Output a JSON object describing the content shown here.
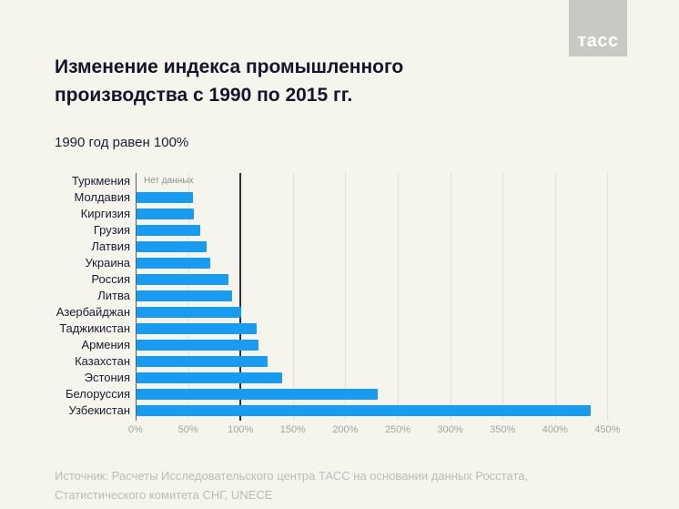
{
  "logo": {
    "text": "тасс"
  },
  "header": {
    "title_lines": [
      "Изменение индекса промышленного",
      "производства с 1990 по 2015 гг."
    ],
    "subtitle": "1990 год равен 100%"
  },
  "chart_data": {
    "type": "bar",
    "orientation": "horizontal",
    "title": "Изменение индекса промышленного производства с 1990 по 2015 гг.",
    "subtitle": "1990 год равен 100%",
    "unit": "%",
    "categories": [
      "Туркмения",
      "Молдавия",
      "Киргизия",
      "Грузия",
      "Латвия",
      "Украина",
      "Россия",
      "Литва",
      "Азербайджан",
      "Таджикистан",
      "Армения",
      "Казахстан",
      "Эстония",
      "Белоруссия",
      "Узбекистан"
    ],
    "values": [
      null,
      54,
      55,
      61,
      67,
      70,
      88,
      91,
      100,
      115,
      116,
      125,
      139,
      230,
      433
    ],
    "no_data_label": "Нет данных",
    "x_ticks": [
      "0%",
      "50%",
      "100%",
      "150%",
      "200%",
      "250%",
      "300%",
      "350%",
      "400%",
      "450%"
    ],
    "x_tick_values": [
      0,
      50,
      100,
      150,
      200,
      250,
      300,
      350,
      400,
      450
    ],
    "xlim": [
      0,
      450
    ],
    "reference_line": 100,
    "grid": true,
    "legend": "none",
    "bar_color": "#189cf2"
  },
  "footer": {
    "source_lines": [
      "Источник: Расчеты Исследовательского центра ТАСС на основании данных Росстата,",
      "Статистического комитета СНГ, UNECE"
    ]
  },
  "colors": {
    "background": "#f5f5ee",
    "bar": "#189cf2",
    "title_text": "#14142a",
    "axis_line": "#595961",
    "reference_line": "#30303c",
    "gridline": "#e1e1d9",
    "tick_text": "#a4a49e",
    "footer_text": "#bcbcb6",
    "logo_bg": "#c9c9c4"
  }
}
